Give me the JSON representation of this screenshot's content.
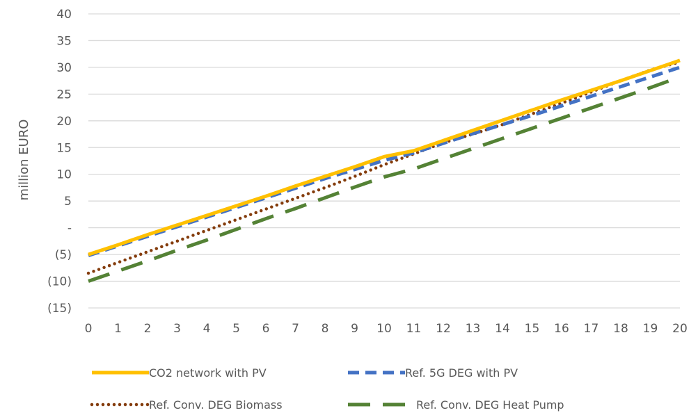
{
  "chart_data": {
    "type": "line",
    "title": "",
    "xlabel": "",
    "ylabel": "million EURO",
    "x": [
      0,
      1,
      2,
      3,
      4,
      5,
      6,
      7,
      8,
      9,
      10,
      11,
      12,
      13,
      14,
      15,
      16,
      17,
      18,
      19,
      20
    ],
    "xlim": [
      0,
      20
    ],
    "ylim": [
      -15,
      40
    ],
    "y_ticks": [
      -15,
      -10,
      -5,
      0,
      5,
      10,
      15,
      20,
      25,
      30,
      35,
      40
    ],
    "y_tick_labels": [
      "(15)",
      "(10)",
      "(5)",
      "-",
      "5",
      "10",
      "15",
      "20",
      "25",
      "30",
      "35",
      "40"
    ],
    "grid": "horizontal",
    "legend": "bottom",
    "series": [
      {
        "name": "CO2 network with PV",
        "color": "#FFC000",
        "dash": "solid",
        "values": [
          -5.0,
          -3.2,
          -1.3,
          0.5,
          2.3,
          4.1,
          5.9,
          7.8,
          9.6,
          11.4,
          13.3,
          14.4,
          16.3,
          18.2,
          20.1,
          22.0,
          23.9,
          25.7,
          27.5,
          29.4,
          31.3
        ]
      },
      {
        "name": "Ref. 5G DEG with PV",
        "color": "#4472C4",
        "dash": "dash",
        "values": [
          -5.2,
          -3.4,
          -1.6,
          0.2,
          2.0,
          3.8,
          5.6,
          7.4,
          9.2,
          10.9,
          12.6,
          14.0,
          15.8,
          17.6,
          19.3,
          21.0,
          22.8,
          24.6,
          26.4,
          28.2,
          30.0
        ]
      },
      {
        "name": "Ref. Conv. DEG Biomass",
        "color": "#843C0C",
        "dash": "dot",
        "values": [
          -8.5,
          -6.5,
          -4.5,
          -2.5,
          -0.5,
          1.5,
          3.5,
          5.5,
          7.5,
          9.6,
          11.8,
          13.8,
          15.9,
          17.5,
          19.3,
          21.3,
          23.3,
          25.4,
          27.5,
          29.5,
          31.0
        ]
      },
      {
        "name": "Ref. Conv. DEG Heat Pump",
        "color": "#548235",
        "dash": "longdash",
        "values": [
          -10.0,
          -8.1,
          -6.2,
          -4.2,
          -2.3,
          -0.3,
          1.7,
          3.6,
          5.6,
          7.6,
          9.5,
          11.0,
          12.9,
          14.8,
          16.7,
          18.6,
          20.5,
          22.4,
          24.3,
          26.2,
          28.2
        ]
      }
    ]
  }
}
